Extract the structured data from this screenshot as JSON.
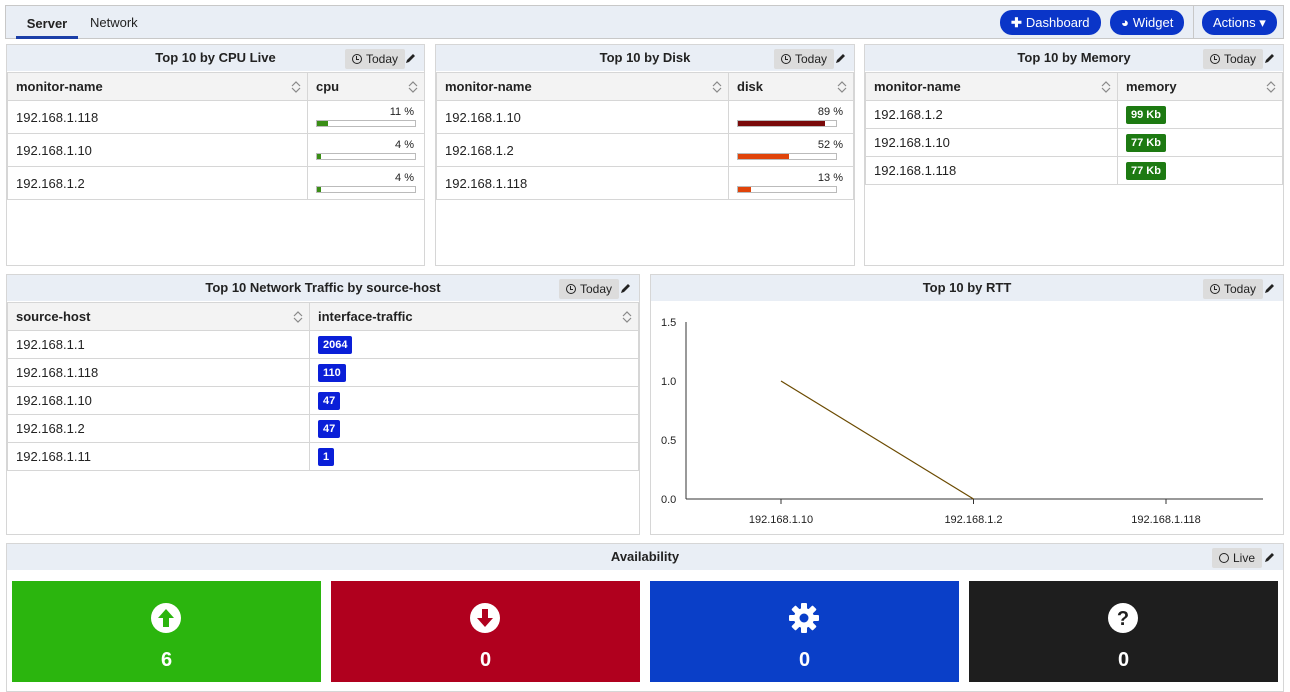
{
  "tabs": {
    "server": "Server",
    "network": "Network"
  },
  "toolbar": {
    "dashboard": "Dashboard",
    "widget": "Widget",
    "actions": "Actions"
  },
  "cpu_panel": {
    "title": "Top 10 by CPU Live",
    "range": "Today",
    "columns": [
      "monitor-name",
      "cpu"
    ],
    "rows": [
      {
        "name": "192.168.1.118",
        "value": 11,
        "label": "11 %"
      },
      {
        "name": "192.168.1.10",
        "value": 4,
        "label": "4 %"
      },
      {
        "name": "192.168.1.2",
        "value": 4,
        "label": "4 %"
      }
    ],
    "color": "#3a8e16"
  },
  "disk_panel": {
    "title": "Top 10 by Disk",
    "range": "Today",
    "columns": [
      "monitor-name",
      "disk"
    ],
    "rows": [
      {
        "name": "192.168.1.10",
        "value": 89,
        "label": "89 %",
        "color": "#7a0a0a"
      },
      {
        "name": "192.168.1.2",
        "value": 52,
        "label": "52 %",
        "color": "#e0440a"
      },
      {
        "name": "192.168.1.118",
        "value": 13,
        "label": "13 %",
        "color": "#e0440a"
      }
    ]
  },
  "memory_panel": {
    "title": "Top 10 by Memory",
    "range": "Today",
    "columns": [
      "monitor-name",
      "memory"
    ],
    "rows": [
      {
        "name": "192.168.1.2",
        "label": "99 Kb"
      },
      {
        "name": "192.168.1.10",
        "label": "77 Kb"
      },
      {
        "name": "192.168.1.118",
        "label": "77 Kb"
      }
    ],
    "color": "#1d7a12"
  },
  "traffic_panel": {
    "title": "Top 10 Network Traffic by source-host",
    "range": "Today",
    "columns": [
      "source-host",
      "interface-traffic"
    ],
    "rows": [
      {
        "name": "192.168.1.1",
        "label": "2064"
      },
      {
        "name": "192.168.1.118",
        "label": "110"
      },
      {
        "name": "192.168.1.10",
        "label": "47"
      },
      {
        "name": "192.168.1.2",
        "label": "47"
      },
      {
        "name": "192.168.1.11",
        "label": "1"
      }
    ],
    "color": "#0a1fd8"
  },
  "rtt_panel": {
    "title": "Top 10 by RTT",
    "range": "Today"
  },
  "chart_data": {
    "type": "line",
    "title": "Top 10 by RTT",
    "categories": [
      "192.168.1.10",
      "192.168.1.2",
      "192.168.1.118"
    ],
    "series": [
      {
        "values": [
          1.0,
          0.0,
          null
        ]
      }
    ],
    "yticks": [
      "1.5",
      "1.0",
      "0.5",
      "0.0"
    ],
    "ylim": [
      0,
      1.5
    ],
    "line_color": "#6b4a00",
    "grid": false
  },
  "availability": {
    "title": "Availability",
    "range": "Live",
    "tiles": [
      {
        "icon": "arrow-up-circle-icon",
        "count": "6",
        "color": "#2bb50e"
      },
      {
        "icon": "arrow-down-circle-icon",
        "count": "0",
        "color": "#b0001e"
      },
      {
        "icon": "gear-icon",
        "count": "0",
        "color": "#0a3fc8"
      },
      {
        "icon": "question-circle-icon",
        "count": "0",
        "color": "#1e1e1e"
      }
    ]
  }
}
